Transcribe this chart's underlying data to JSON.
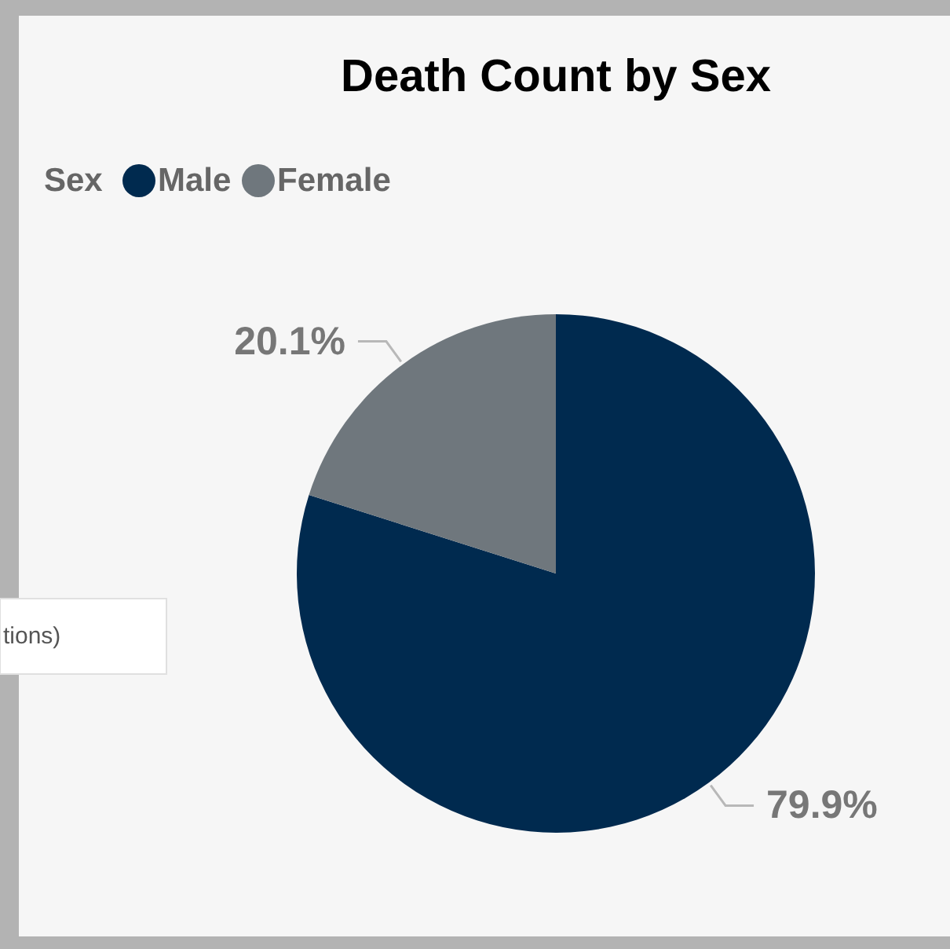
{
  "chart_data": {
    "type": "pie",
    "title": "Death Count by Sex",
    "legend_title": "Sex",
    "legend": "top left",
    "categories": [
      "Male",
      "Female"
    ],
    "values": [
      79.9,
      20.1
    ],
    "colors": [
      "#002a4f",
      "#6f777d"
    ],
    "value_labels": [
      "79.9%",
      "20.1%"
    ],
    "annotations": [
      "tions)"
    ]
  }
}
